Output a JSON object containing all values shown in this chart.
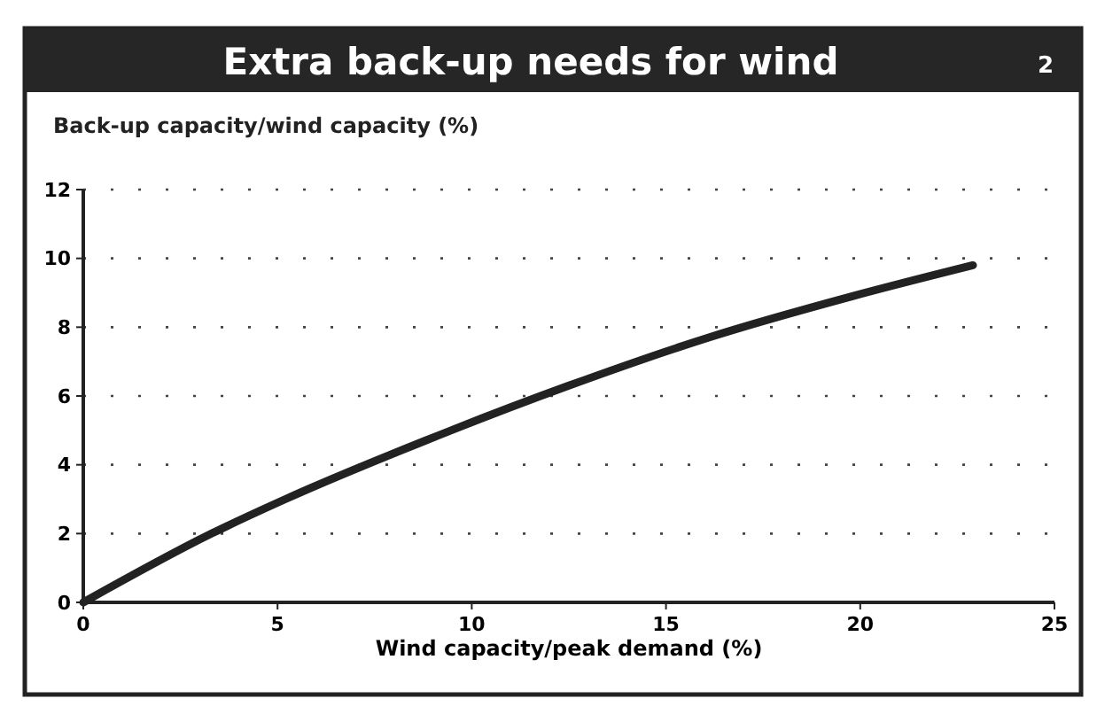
{
  "chart_data": {
    "type": "line",
    "title": "Extra back-up needs for wind",
    "ylabel": "Back-up capacity/wind capacity (%)",
    "xlabel": "Wind capacity/peak demand (%)",
    "annotations": [
      "2"
    ],
    "x": [
      0,
      3.3,
      5.2,
      8.8,
      12.5,
      16.1,
      19.8,
      22.9
    ],
    "series": [
      {
        "color": "#222222",
        "values": [
          0,
          2,
          3,
          4.7,
          6.3,
          7.7,
          8.9,
          9.8
        ]
      }
    ],
    "xlim": [
      0,
      25
    ],
    "xticks": [
      0,
      5,
      10,
      15,
      20,
      25
    ],
    "ylim": [
      0,
      12
    ],
    "yticks": [
      0,
      2,
      4,
      6,
      8,
      10,
      12
    ],
    "grid": "y",
    "marker": "none",
    "line_style": "solid"
  }
}
